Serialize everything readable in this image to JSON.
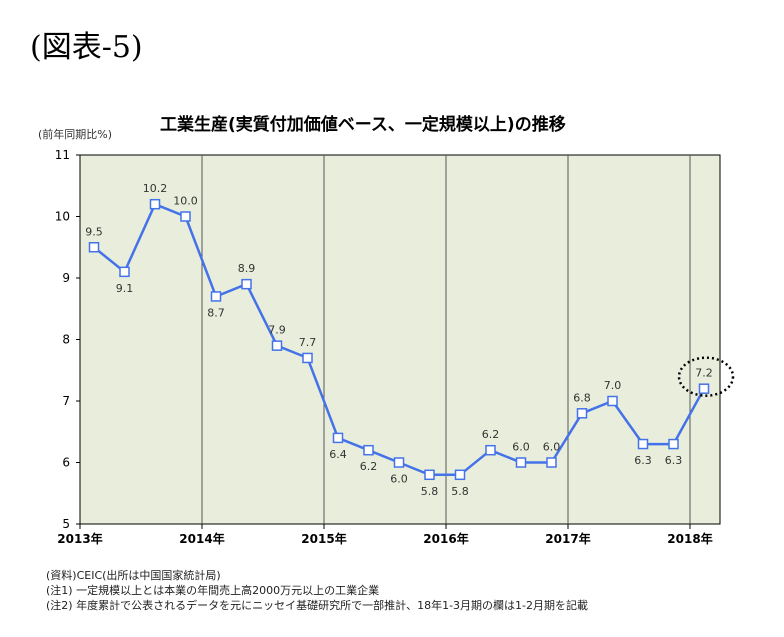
{
  "figure_label": "(図表-5)",
  "chart_data": {
    "type": "line",
    "title": "工業生産(実質付加価値ベース、一定規模以上)の推移",
    "ylabel": "(前年同期比%)",
    "ylim": [
      5,
      11
    ],
    "y_ticks": [
      "5",
      "6",
      "7",
      "8",
      "9",
      "10",
      "11"
    ],
    "x_ticks": [
      "2013年",
      "2014年",
      "2015年",
      "2016年",
      "2017年",
      "2018年"
    ],
    "series": [
      {
        "values": [
          9.5,
          9.1,
          10.2,
          10.0,
          8.7,
          8.9,
          7.9,
          7.7,
          6.4,
          6.2,
          6.0,
          5.8,
          5.8,
          6.2,
          6.0,
          6.0,
          6.8,
          7.0,
          6.3,
          6.3,
          7.2
        ],
        "labels": [
          "9.5",
          "9.1",
          "10.2",
          "10.0",
          "8.7",
          "8.9",
          "7.9",
          "7.7",
          "6.4",
          "6.2",
          "6.0",
          "5.8",
          "5.8",
          "6.2",
          "6.0",
          "6.0",
          "6.8",
          "7.0",
          "6.3",
          "6.3",
          "7.2"
        ]
      }
    ],
    "highlight_index": 20,
    "colors": {
      "line": "#4472e8",
      "plot_bg": "#e9eedc",
      "marker_fill": "#ffffff"
    },
    "grid": "vertical year lines"
  },
  "notes": [
    "(資料)CEIC(出所は中国国家統計局)",
    "(注1) 一定規模以上とは本業の年間売上高2000万元以上の工業企業",
    "(注2) 年度累計で公表されるデータを元にニッセイ基礎研究所で一部推計、18年1-3月期の欄は1-2月期を記載"
  ]
}
